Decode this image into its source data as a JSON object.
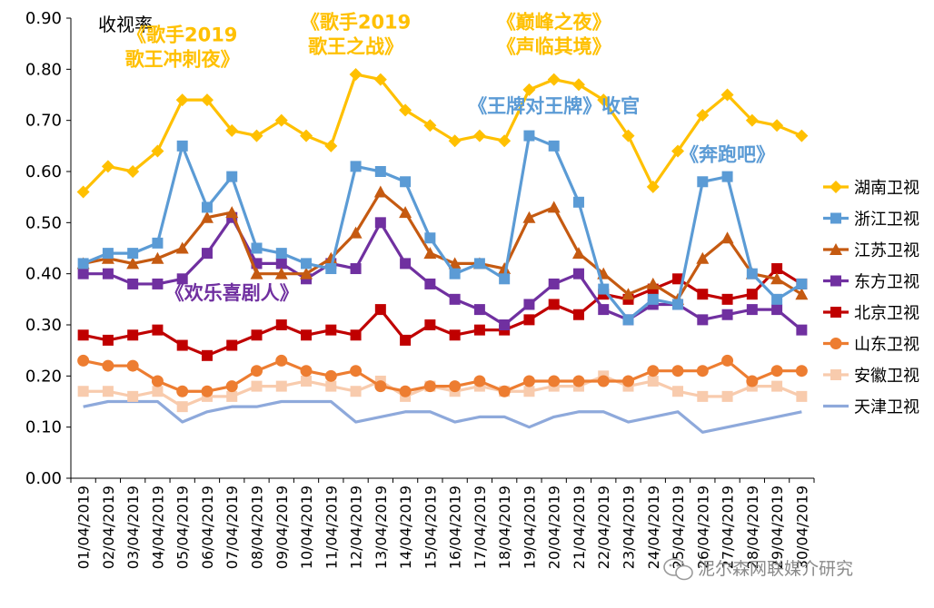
{
  "chart_data": {
    "type": "line",
    "title": "",
    "ylabel": "收视率",
    "xlabel": "",
    "ylim": [
      0,
      0.9
    ],
    "yticks": [
      "0.00",
      "0.10",
      "0.20",
      "0.30",
      "0.40",
      "0.50",
      "0.60",
      "0.70",
      "0.80",
      "0.90"
    ],
    "categories": [
      "01/04/2019",
      "02/04/2019",
      "03/04/2019",
      "04/04/2019",
      "05/04/2019",
      "06/04/2019",
      "07/04/2019",
      "08/04/2019",
      "09/04/2019",
      "10/04/2019",
      "11/04/2019",
      "12/04/2019",
      "13/04/2019",
      "14/04/2019",
      "15/04/2019",
      "16/04/2019",
      "17/04/2019",
      "18/04/2019",
      "19/04/2019",
      "20/04/2019",
      "21/04/2019",
      "22/04/2019",
      "23/04/2019",
      "24/04/2019",
      "25/04/2019",
      "26/04/2019",
      "27/04/2019",
      "28/04/2019",
      "29/04/2019",
      "30/04/2019"
    ],
    "legend_position": "right",
    "series": [
      {
        "name": "湖南卫视",
        "color": "#FFC000",
        "marker": "diamond",
        "values": [
          0.56,
          0.61,
          0.6,
          0.64,
          0.74,
          0.74,
          0.68,
          0.67,
          0.7,
          0.67,
          0.65,
          0.79,
          0.78,
          0.72,
          0.69,
          0.66,
          0.67,
          0.66,
          0.76,
          0.78,
          0.77,
          0.74,
          0.67,
          0.57,
          0.64,
          0.71,
          0.75,
          0.7,
          0.69,
          0.67
        ]
      },
      {
        "name": "浙江卫视",
        "color": "#5B9BD5",
        "marker": "square",
        "values": [
          0.42,
          0.44,
          0.44,
          0.46,
          0.65,
          0.53,
          0.59,
          0.45,
          0.44,
          0.42,
          0.41,
          0.61,
          0.6,
          0.58,
          0.47,
          0.4,
          0.42,
          0.39,
          0.67,
          0.65,
          0.54,
          0.37,
          0.31,
          0.35,
          0.34,
          0.58,
          0.59,
          0.4,
          0.35,
          0.38
        ]
      },
      {
        "name": "江苏卫视",
        "color": "#C55A11",
        "marker": "triangle",
        "values": [
          0.42,
          0.43,
          0.42,
          0.43,
          0.45,
          0.51,
          0.52,
          0.4,
          0.4,
          0.4,
          0.43,
          0.48,
          0.56,
          0.52,
          0.44,
          0.42,
          0.42,
          0.41,
          0.51,
          0.53,
          0.44,
          0.4,
          0.36,
          0.38,
          0.35,
          0.43,
          0.47,
          0.4,
          0.39,
          0.36
        ]
      },
      {
        "name": "东方卫视",
        "color": "#7030A0",
        "marker": "square",
        "values": [
          0.4,
          0.4,
          0.38,
          0.38,
          0.39,
          0.44,
          0.51,
          0.42,
          0.42,
          0.39,
          0.42,
          0.41,
          0.5,
          0.42,
          0.38,
          0.35,
          0.33,
          0.3,
          0.34,
          0.38,
          0.4,
          0.33,
          0.31,
          0.34,
          0.34,
          0.31,
          0.32,
          0.33,
          0.33,
          0.29
        ]
      },
      {
        "name": "北京卫视",
        "color": "#C00000",
        "marker": "square",
        "values": [
          0.28,
          0.27,
          0.28,
          0.29,
          0.26,
          0.24,
          0.26,
          0.28,
          0.3,
          0.28,
          0.29,
          0.28,
          0.33,
          0.27,
          0.3,
          0.28,
          0.29,
          0.29,
          0.31,
          0.34,
          0.32,
          0.36,
          0.35,
          0.37,
          0.39,
          0.36,
          0.35,
          0.36,
          0.41,
          0.38
        ]
      },
      {
        "name": "山东卫视",
        "color": "#ED7D31",
        "marker": "circle",
        "values": [
          0.23,
          0.22,
          0.22,
          0.19,
          0.17,
          0.17,
          0.18,
          0.21,
          0.23,
          0.21,
          0.2,
          0.21,
          0.18,
          0.17,
          0.18,
          0.18,
          0.19,
          0.17,
          0.19,
          0.19,
          0.19,
          0.19,
          0.19,
          0.21,
          0.21,
          0.21,
          0.23,
          0.19,
          0.21,
          0.21
        ]
      },
      {
        "name": "安徽卫视",
        "color": "#F8CBAD",
        "marker": "square",
        "values": [
          0.17,
          0.17,
          0.16,
          0.17,
          0.14,
          0.16,
          0.16,
          0.18,
          0.18,
          0.19,
          0.18,
          0.17,
          0.19,
          0.16,
          0.18,
          0.17,
          0.18,
          0.17,
          0.17,
          0.18,
          0.18,
          0.2,
          0.18,
          0.19,
          0.17,
          0.16,
          0.16,
          0.18,
          0.18,
          0.16
        ]
      },
      {
        "name": "天津卫视",
        "color": "#8EA9DB",
        "marker": "none",
        "values": [
          0.14,
          0.15,
          0.15,
          0.15,
          0.11,
          0.13,
          0.14,
          0.14,
          0.15,
          0.15,
          0.15,
          0.11,
          0.12,
          0.13,
          0.13,
          0.11,
          0.12,
          0.12,
          0.1,
          0.12,
          0.13,
          0.13,
          0.11,
          0.12,
          0.13,
          0.09,
          0.1,
          0.11,
          0.12,
          0.13
        ]
      }
    ],
    "annotations": [
      {
        "lines": [
          "《歌手2019",
          "歌王冲刺夜》"
        ],
        "color": "#FFC000",
        "at_category": "05/04/2019",
        "at_value": 0.855
      },
      {
        "lines": [
          "《歌手2019",
          "歌王之战》"
        ],
        "color": "#FFC000",
        "at_category": "12/04/2019",
        "at_value": 0.88
      },
      {
        "lines": [
          "《巅峰之夜》",
          "《声临其境》"
        ],
        "color": "#FFC000",
        "at_category": "20/04/2019",
        "at_value": 0.88
      },
      {
        "lines": [
          "《王牌对王牌》收官"
        ],
        "color": "#5B9BD5",
        "at_category": "20/04/2019",
        "at_value": 0.715
      },
      {
        "lines": [
          "《奔跑吧》"
        ],
        "color": "#5B9BD5",
        "at_category": "27/04/2019",
        "at_value": 0.62
      },
      {
        "lines": [
          "《欢乐喜剧人》"
        ],
        "color": "#7030A0",
        "at_category": "07/04/2019",
        "at_value": 0.35
      }
    ]
  },
  "watermark": "泥尔森网联媒介研究"
}
